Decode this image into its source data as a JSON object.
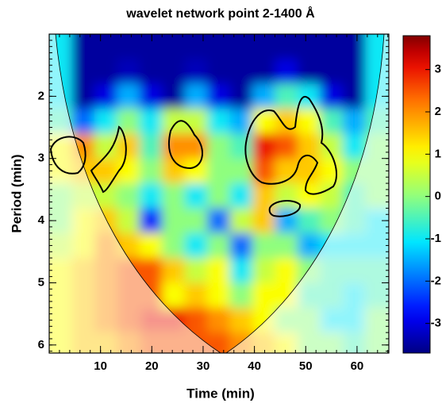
{
  "chart_data": {
    "type": "heatmap",
    "title": "wavelet network point 2-1400 Å",
    "xlabel": "Time (min)",
    "ylabel": "Period (min)",
    "colormap": "jet",
    "x": [
      2.2,
      6.6,
      11,
      15.4,
      19.8,
      24.2,
      28.6,
      33,
      37.4,
      41.8,
      46.2,
      50.6,
      55,
      59.4,
      63.8
    ],
    "y": [
      1.2,
      1.6,
      2.0,
      2.4,
      2.8,
      3.2,
      3.6,
      4.0,
      4.4,
      4.8,
      5.2,
      5.6,
      6.0
    ],
    "z": [
      [
        -1,
        -3.5,
        -3.5,
        -3.5,
        -3.5,
        -3.5,
        -3.5,
        -3.5,
        -3.5,
        -3.5,
        -3.5,
        -3.5,
        -3.5,
        -3.5,
        -1
      ],
      [
        -1,
        -3.5,
        -3.5,
        -3.3,
        -3.5,
        -3.5,
        -3.3,
        -3.5,
        -3.5,
        -3.5,
        -3,
        -3.5,
        -3.5,
        -3.5,
        -1
      ],
      [
        -1,
        -3.5,
        -3,
        -1.5,
        -3,
        -3.5,
        -1.5,
        -3,
        -3.5,
        -1.5,
        -0.5,
        -1,
        -3,
        -3.5,
        -1
      ],
      [
        -0.5,
        -2,
        -1,
        0,
        -1,
        0.5,
        0.5,
        -1,
        -1.5,
        1,
        1.5,
        1,
        -0.5,
        -1.5,
        -0.5
      ],
      [
        1,
        2,
        0.5,
        1.5,
        -0.5,
        2,
        2,
        0,
        -0.5,
        3,
        2.5,
        1.5,
        0.5,
        -1,
        0
      ],
      [
        1,
        1.5,
        1.5,
        1,
        0,
        1.5,
        1,
        0,
        0,
        2.5,
        1.5,
        1.5,
        1,
        0,
        0
      ],
      [
        0,
        0.5,
        0.5,
        0,
        -1,
        0,
        -1,
        0,
        -1,
        1.5,
        0.5,
        1,
        0.5,
        -0.5,
        0
      ],
      [
        0,
        1,
        1.5,
        0.5,
        -2.5,
        0,
        0,
        -2,
        0.5,
        1.5,
        -1.5,
        -0.5,
        0,
        -0.5,
        -1
      ],
      [
        0.5,
        1,
        2,
        1.5,
        1,
        0,
        -1,
        0,
        -2,
        0,
        0,
        -1.5,
        -1,
        -1,
        -1
      ],
      [
        1,
        1.5,
        2,
        2.5,
        2.5,
        1.5,
        0.5,
        1,
        -1,
        0.5,
        1,
        0,
        -0.5,
        -0.5,
        -0.5
      ],
      [
        1,
        1.5,
        2,
        2.5,
        2.5,
        1,
        1.5,
        1,
        0,
        1,
        1,
        -0.5,
        -0.5,
        -1,
        -0.5
      ],
      [
        1,
        1.5,
        2,
        2.5,
        3,
        3,
        2.5,
        2,
        1.5,
        1,
        0,
        0,
        -1,
        -1,
        0
      ],
      [
        1,
        1.5,
        1.5,
        2,
        2.5,
        2.5,
        2.5,
        2.5,
        2,
        1.5,
        1,
        0,
        0,
        -0.5,
        0
      ]
    ],
    "xlim": [
      0,
      66.2
    ],
    "xticks": [
      10,
      20,
      30,
      40,
      50,
      60
    ],
    "ylim": [
      1.0,
      6.13
    ],
    "yticks": [
      2,
      3,
      4,
      5,
      6
    ],
    "y_inverted": true,
    "zlim": [
      -3.7,
      3.8
    ],
    "zticks": [
      -3,
      -2,
      -1,
      0,
      1,
      2,
      3
    ]
  }
}
